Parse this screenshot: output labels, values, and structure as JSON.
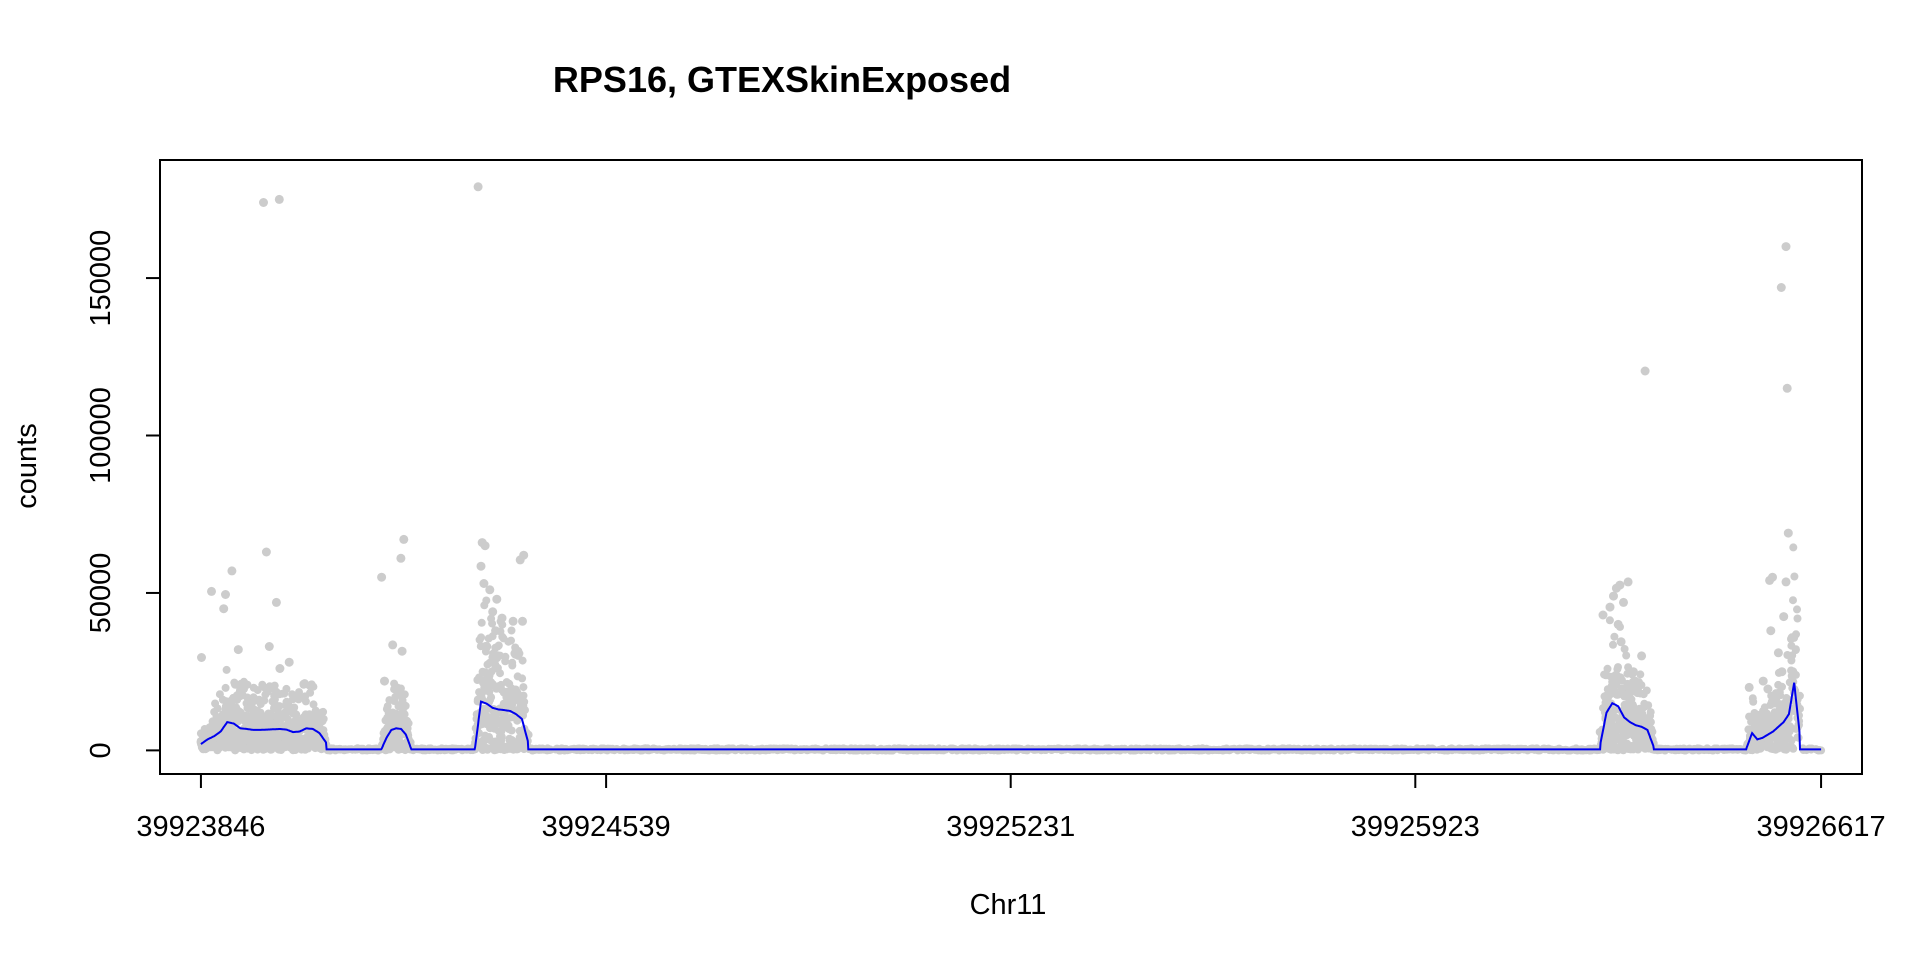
{
  "chart_data": {
    "type": "scatter",
    "title": "RPS16, GTEXSkinExposed",
    "xlabel": "Chr11",
    "ylabel": "counts",
    "xlim": [
      39923776,
      39926687
    ],
    "ylim": [
      -7500,
      187500
    ],
    "x_ticks": [
      39923846,
      39924539,
      39925231,
      39925923,
      39926617
    ],
    "x_tick_labels": [
      "39923846",
      "39924539",
      "39925231",
      "39925923",
      "39926617"
    ],
    "y_ticks": [
      0,
      50000,
      100000,
      150000
    ],
    "y_tick_labels": [
      "0",
      "50000",
      "100000",
      "150000"
    ],
    "grid": false,
    "legend": "none",
    "colors": {
      "points": "#cccccc",
      "line": "#0000ee",
      "axis": "#000000"
    },
    "regions": [
      {
        "start": 39923846,
        "end": 39924060,
        "profile": [
          2000,
          3500,
          4500,
          6000,
          9000,
          8500,
          7000,
          6800,
          6500,
          6500,
          6600,
          6700,
          6800,
          6600,
          5800,
          6000,
          7000,
          6800,
          5500,
          2500
        ]
      },
      {
        "start": 39924155,
        "end": 39924205,
        "profile": [
          500,
          4000,
          6500,
          7000,
          6800,
          5000,
          800
        ]
      },
      {
        "start": 39924315,
        "end": 39924405,
        "profile": [
          1000,
          15500,
          14800,
          13500,
          13000,
          12800,
          12500,
          11500,
          10000,
          3000
        ]
      },
      {
        "start": 39926240,
        "end": 39926330,
        "profile": [
          2500,
          12000,
          15000,
          14000,
          10500,
          9000,
          8000,
          7500,
          6500,
          1500
        ]
      },
      {
        "start": 39926490,
        "end": 39926580,
        "profile": [
          1000,
          5500,
          3500,
          4000,
          5000,
          6000,
          7500,
          9000,
          11500,
          21500,
          6000
        ]
      }
    ],
    "background_level": 300,
    "outliers": [
      {
        "x": 39923847,
        "y": 29500
      },
      {
        "x": 39923850,
        "y": 500
      },
      {
        "x": 39923864,
        "y": 50500
      },
      {
        "x": 39923885,
        "y": 45000
      },
      {
        "x": 39923888,
        "y": 49500
      },
      {
        "x": 39923899,
        "y": 57000
      },
      {
        "x": 39923910,
        "y": 32000
      },
      {
        "x": 39923905,
        "y": 21000
      },
      {
        "x": 39923958,
        "y": 63000
      },
      {
        "x": 39923975,
        "y": 47000
      },
      {
        "x": 39923963,
        "y": 33000
      },
      {
        "x": 39923997,
        "y": 28000
      },
      {
        "x": 39923981,
        "y": 26000
      },
      {
        "x": 39923953,
        "y": 174000
      },
      {
        "x": 39923980,
        "y": 175000
      },
      {
        "x": 39924155,
        "y": 55000
      },
      {
        "x": 39924174,
        "y": 33500
      },
      {
        "x": 39924188,
        "y": 61000
      },
      {
        "x": 39924193,
        "y": 67000
      },
      {
        "x": 39924190,
        "y": 31500
      },
      {
        "x": 39924160,
        "y": 22000
      },
      {
        "x": 39924320,
        "y": 179000
      },
      {
        "x": 39924327,
        "y": 66000
      },
      {
        "x": 39924332,
        "y": 65000
      },
      {
        "x": 39924325,
        "y": 58500
      },
      {
        "x": 39924330,
        "y": 53000
      },
      {
        "x": 39924340,
        "y": 51000
      },
      {
        "x": 39924352,
        "y": 48000
      },
      {
        "x": 39924345,
        "y": 44000
      },
      {
        "x": 39924361,
        "y": 42000
      },
      {
        "x": 39924350,
        "y": 38000
      },
      {
        "x": 39924335,
        "y": 33000
      },
      {
        "x": 39924380,
        "y": 41000
      },
      {
        "x": 39924392,
        "y": 60500
      },
      {
        "x": 39924398,
        "y": 62000
      },
      {
        "x": 39924396,
        "y": 41000
      },
      {
        "x": 39924388,
        "y": 31500
      },
      {
        "x": 39926244,
        "y": 43000
      },
      {
        "x": 39926256,
        "y": 45500
      },
      {
        "x": 39926262,
        "y": 49000
      },
      {
        "x": 39926267,
        "y": 51500
      },
      {
        "x": 39926273,
        "y": 52500
      },
      {
        "x": 39926287,
        "y": 53500
      },
      {
        "x": 39926279,
        "y": 47000
      },
      {
        "x": 39926270,
        "y": 40000
      },
      {
        "x": 39926275,
        "y": 34500
      },
      {
        "x": 39926249,
        "y": 24000
      },
      {
        "x": 39926310,
        "y": 30000
      },
      {
        "x": 39926316,
        "y": 120500
      },
      {
        "x": 39926296,
        "y": 25000
      },
      {
        "x": 39926494,
        "y": 20000
      },
      {
        "x": 39926518,
        "y": 22000
      },
      {
        "x": 39926526,
        "y": 19500
      },
      {
        "x": 39926531,
        "y": 38000
      },
      {
        "x": 39926529,
        "y": 54000
      },
      {
        "x": 39926534,
        "y": 55000
      },
      {
        "x": 39926544,
        "y": 31000
      },
      {
        "x": 39926549,
        "y": 147000
      },
      {
        "x": 39926557,
        "y": 160000
      },
      {
        "x": 39926559,
        "y": 115000
      },
      {
        "x": 39926561,
        "y": 69000
      },
      {
        "x": 39926557,
        "y": 53500
      },
      {
        "x": 39926553,
        "y": 42500
      },
      {
        "x": 39926550,
        "y": 25000
      }
    ]
  }
}
